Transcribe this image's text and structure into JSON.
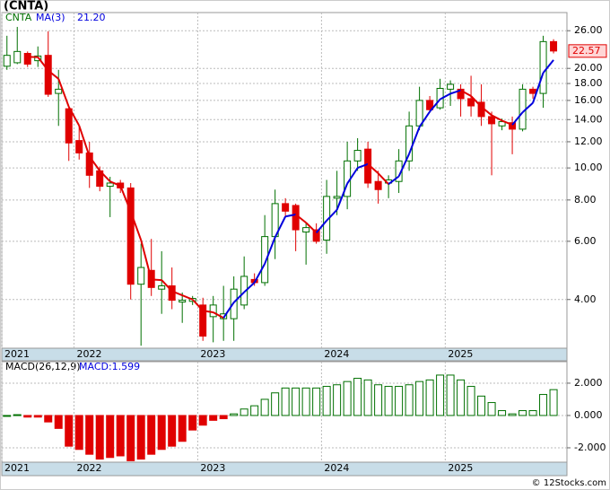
{
  "chart_data": [
    {
      "type": "candlestick",
      "title": "(CNTA)",
      "name": "CNTA",
      "categories": [
        null,
        null,
        null,
        null,
        null,
        null,
        null,
        null,
        null,
        null,
        null,
        null,
        null,
        null,
        null,
        null,
        null,
        null,
        null,
        null,
        null,
        null,
        null,
        null,
        null,
        null,
        null,
        null,
        null,
        null,
        null,
        null,
        null,
        null,
        null,
        null,
        null,
        null,
        null,
        null,
        null,
        null,
        null,
        null,
        null,
        null,
        null,
        null,
        null,
        null,
        null,
        null,
        null,
        null
      ],
      "open": [
        20.3,
        20.8,
        22.2,
        21.1,
        21.9,
        16.8,
        15.1,
        12.1,
        11.1,
        9.8,
        8.8,
        9.0,
        8.7,
        4.45,
        4.9,
        4.3,
        4.4,
        3.93,
        3.95,
        3.85,
        3.55,
        3.5,
        3.5,
        3.85,
        4.6,
        4.5,
        6.2,
        7.8,
        7.7,
        6.4,
        6.5,
        6.05,
        8.1,
        8.2,
        10.5,
        11.4,
        9.1,
        9.0,
        9.1,
        10.5,
        13.4,
        16.0,
        15.2,
        17.3,
        17.3,
        16.2,
        15.8,
        14.3,
        13.4,
        13.7,
        13.1,
        17.3,
        16.8,
        24.1
      ],
      "high": [
        25.1,
        26.7,
        22.5,
        23.3,
        25.9,
        19.8,
        15.4,
        13.4,
        12.0,
        10.1,
        9.4,
        9.2,
        9.0,
        5.9,
        6.1,
        5.6,
        5.0,
        4.2,
        4.1,
        4.05,
        4.1,
        4.4,
        4.7,
        5.4,
        4.8,
        7.2,
        8.6,
        8.1,
        7.8,
        6.8,
        6.8,
        9.2,
        9.8,
        12.0,
        12.3,
        12.0,
        9.8,
        9.5,
        11.4,
        14.8,
        17.6,
        16.5,
        18.6,
        18.4,
        17.9,
        19.0,
        17.9,
        14.8,
        14.1,
        14.3,
        17.9,
        17.6,
        25.1,
        24.5
      ],
      "low": [
        19.8,
        20.6,
        20.2,
        20.2,
        16.4,
        13.4,
        10.5,
        10.6,
        8.7,
        8.5,
        7.1,
        8.4,
        4.0,
        2.9,
        4.1,
        3.62,
        3.74,
        3.4,
        3.85,
        3.0,
        2.97,
        3.0,
        3.0,
        3.74,
        4.4,
        4.4,
        5.3,
        7.1,
        5.6,
        5.1,
        5.9,
        5.5,
        7.2,
        7.5,
        9.8,
        8.7,
        7.8,
        8.1,
        8.4,
        9.8,
        13.0,
        14.7,
        15.0,
        15.4,
        14.3,
        14.3,
        13.4,
        9.5,
        13.0,
        11.0,
        12.9,
        16.2,
        15.2,
        22.2
      ],
      "close": [
        21.9,
        22.5,
        20.6,
        21.8,
        16.7,
        17.3,
        11.9,
        11.1,
        9.5,
        8.8,
        9.0,
        8.7,
        4.45,
        5.0,
        4.35,
        4.4,
        3.98,
        3.98,
        4.03,
        3.1,
        3.85,
        3.62,
        4.3,
        4.7,
        4.5,
        6.2,
        7.8,
        7.4,
        6.5,
        6.6,
        6.0,
        8.2,
        8.2,
        10.5,
        11.3,
        9.0,
        8.6,
        9.2,
        10.5,
        13.4,
        16.0,
        15.0,
        17.4,
        17.9,
        16.2,
        15.4,
        14.3,
        13.6,
        13.8,
        13.1,
        17.3,
        16.8,
        24.1,
        22.57
      ],
      "up_color": "#007000",
      "down_color": "#e00000",
      "last_price_label": "22.57",
      "series": [
        {
          "name": "MA(3)",
          "value_label": "21.20",
          "up_color": "#0000dd",
          "down_color": "#e00000",
          "values": [
            null,
            null,
            21.67,
            21.63,
            19.7,
            18.6,
            15.3,
            13.43,
            10.83,
            9.8,
            9.1,
            8.83,
            7.38,
            6.05,
            4.6,
            4.58,
            4.24,
            4.12,
            4.0,
            3.7,
            3.66,
            3.52,
            3.92,
            4.21,
            4.5,
            5.13,
            6.17,
            7.13,
            7.23,
            6.83,
            6.37,
            6.93,
            7.47,
            8.97,
            10.0,
            10.27,
            9.63,
            8.93,
            9.43,
            11.03,
            13.3,
            14.8,
            16.13,
            16.77,
            17.17,
            16.5,
            15.3,
            14.43,
            13.9,
            13.5,
            14.73,
            15.73,
            19.4,
            21.2
          ]
        }
      ],
      "xlim": [
        -0.5,
        54.3
      ],
      "xticks": [
        {
          "value": -0.5,
          "label": "2021"
        },
        {
          "value": 6.5,
          "label": "2022"
        },
        {
          "value": 18.5,
          "label": "2023"
        },
        {
          "value": 30.5,
          "label": "2024"
        },
        {
          "value": 42.5,
          "label": "2025"
        }
      ],
      "ylim": [
        2.85,
        29.5
      ],
      "log_scale": true,
      "grid": true,
      "yticks": [
        {
          "value": 26,
          "label": "26.00"
        },
        {
          "value": 20,
          "label": "20.00"
        },
        {
          "value": 18,
          "label": "18.00"
        },
        {
          "value": 16,
          "label": "16.00"
        },
        {
          "value": 14,
          "label": "14.00"
        },
        {
          "value": 12,
          "label": "12.00"
        },
        {
          "value": 10,
          "label": "10.00"
        },
        {
          "value": 8,
          "label": "8.00"
        },
        {
          "value": 6,
          "label": "6.00"
        },
        {
          "value": 4,
          "label": "4.00"
        }
      ]
    },
    {
      "type": "bar",
      "title": "MACD(26,12,9)",
      "categories": [
        null,
        null,
        null,
        null,
        null,
        null,
        null,
        null,
        null,
        null,
        null,
        null,
        null,
        null,
        null,
        null,
        null,
        null,
        null,
        null,
        null,
        null,
        null,
        null,
        null,
        null,
        null,
        null,
        null,
        null,
        null,
        null,
        null,
        null,
        null,
        null,
        null,
        null,
        null,
        null,
        null,
        null,
        null,
        null,
        null,
        null,
        null,
        null,
        null,
        null,
        null,
        null,
        null,
        null
      ],
      "series": [
        {
          "value_label": "MACD:1.599",
          "up_color": "#007000",
          "down_color": "#e00000",
          "values": [
            0,
            0.05,
            -0.1,
            -0.1,
            -0.4,
            -0.8,
            -1.9,
            -2.1,
            -2.4,
            -2.7,
            -2.6,
            -2.5,
            -2.8,
            -2.7,
            -2.4,
            -2.1,
            -1.9,
            -1.6,
            -0.9,
            -0.6,
            -0.3,
            -0.2,
            0.1,
            0.4,
            0.6,
            1.0,
            1.4,
            1.7,
            1.7,
            1.7,
            1.7,
            1.8,
            1.9,
            2.1,
            2.3,
            2.2,
            1.9,
            1.8,
            1.8,
            1.9,
            2.1,
            2.2,
            2.5,
            2.5,
            2.2,
            1.8,
            1.2,
            0.8,
            0.3,
            0.1,
            0.3,
            0.3,
            1.3,
            1.599
          ]
        }
      ],
      "xlim": [
        -0.5,
        54.3
      ],
      "xticks": [
        {
          "value": -0.5,
          "label": "2021"
        },
        {
          "value": 6.5,
          "label": "2022"
        },
        {
          "value": 18.5,
          "label": "2023"
        },
        {
          "value": 30.5,
          "label": "2024"
        },
        {
          "value": 42.5,
          "label": "2025"
        }
      ],
      "ylim": [
        -2.89,
        3.33
      ],
      "grid": true,
      "yticks": [
        {
          "value": 2,
          "label": "2.000"
        },
        {
          "value": 0,
          "label": "0.000"
        },
        {
          "value": -2,
          "label": "-2.000"
        }
      ]
    }
  ],
  "footer": "© 12Stocks.com"
}
